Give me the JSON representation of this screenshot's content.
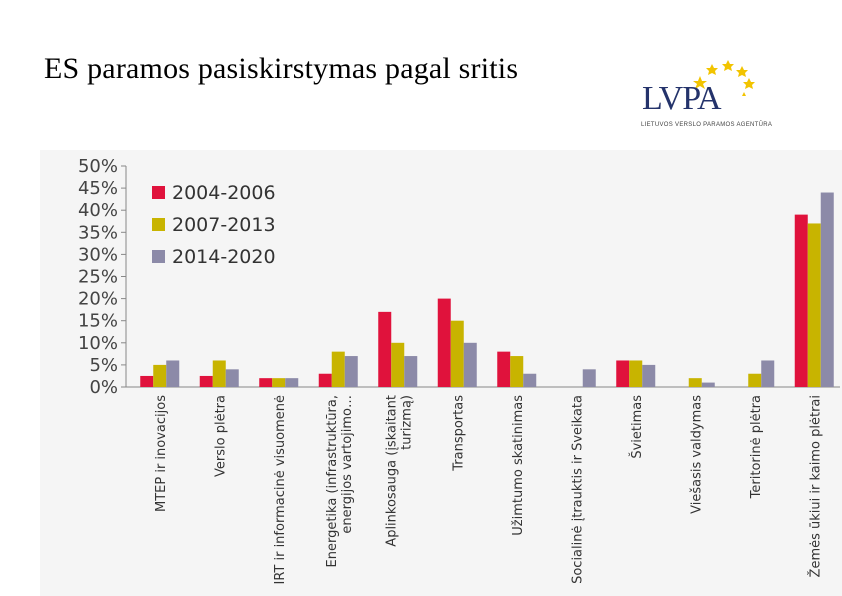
{
  "slide": {
    "title": "ES paramos  pasiskirstymas pagal  sritis"
  },
  "logo": {
    "name": "LVPA",
    "subtitle": "LIETUVOS VERSLO PARAMOS AGENTŪRA",
    "star_color": "#f2c400",
    "text_color": "#24336b"
  },
  "chart_data": {
    "type": "bar",
    "title": "",
    "xlabel": "",
    "ylabel": "",
    "ylim": [
      0,
      50
    ],
    "yticks": [
      "0%",
      "5%",
      "10%",
      "15%",
      "20%",
      "25%",
      "30%",
      "35%",
      "40%",
      "45%",
      "50%"
    ],
    "grid": false,
    "legend_position": "top-left",
    "categories": [
      [
        "MTEP ir inovacijos"
      ],
      [
        "Verslo plėtra"
      ],
      [
        "IRT ir informacinė visuomenė"
      ],
      [
        "Energetika (infrastruktūra,",
        "energijos vartojimo…"
      ],
      [
        "Aplinkosauga (įskaitant",
        "turizmą)"
      ],
      [
        "Transportas"
      ],
      [
        "Užimtumo skatinimas"
      ],
      [
        "Socialinė įtrauktis ir Sveikata"
      ],
      [
        "Švietimas"
      ],
      [
        "Viešasis valdymas"
      ],
      [
        "Teritorinė plėtra"
      ],
      [
        "Žemės ūkiui ir kaimo plėtrai"
      ]
    ],
    "series": [
      {
        "name": "2004-2006",
        "color": "#e0123c",
        "values": [
          2.5,
          2.5,
          2,
          3,
          17,
          20,
          8,
          0,
          6,
          0,
          0,
          39
        ]
      },
      {
        "name": "2007-2013",
        "color": "#c8b400",
        "values": [
          5,
          6,
          2,
          8,
          10,
          15,
          7,
          0,
          6,
          2,
          3,
          37
        ]
      },
      {
        "name": "2014-2020",
        "color": "#8c8aa8",
        "values": [
          6,
          4,
          2,
          7,
          7,
          10,
          3,
          4,
          5,
          1,
          6,
          44
        ]
      }
    ]
  }
}
